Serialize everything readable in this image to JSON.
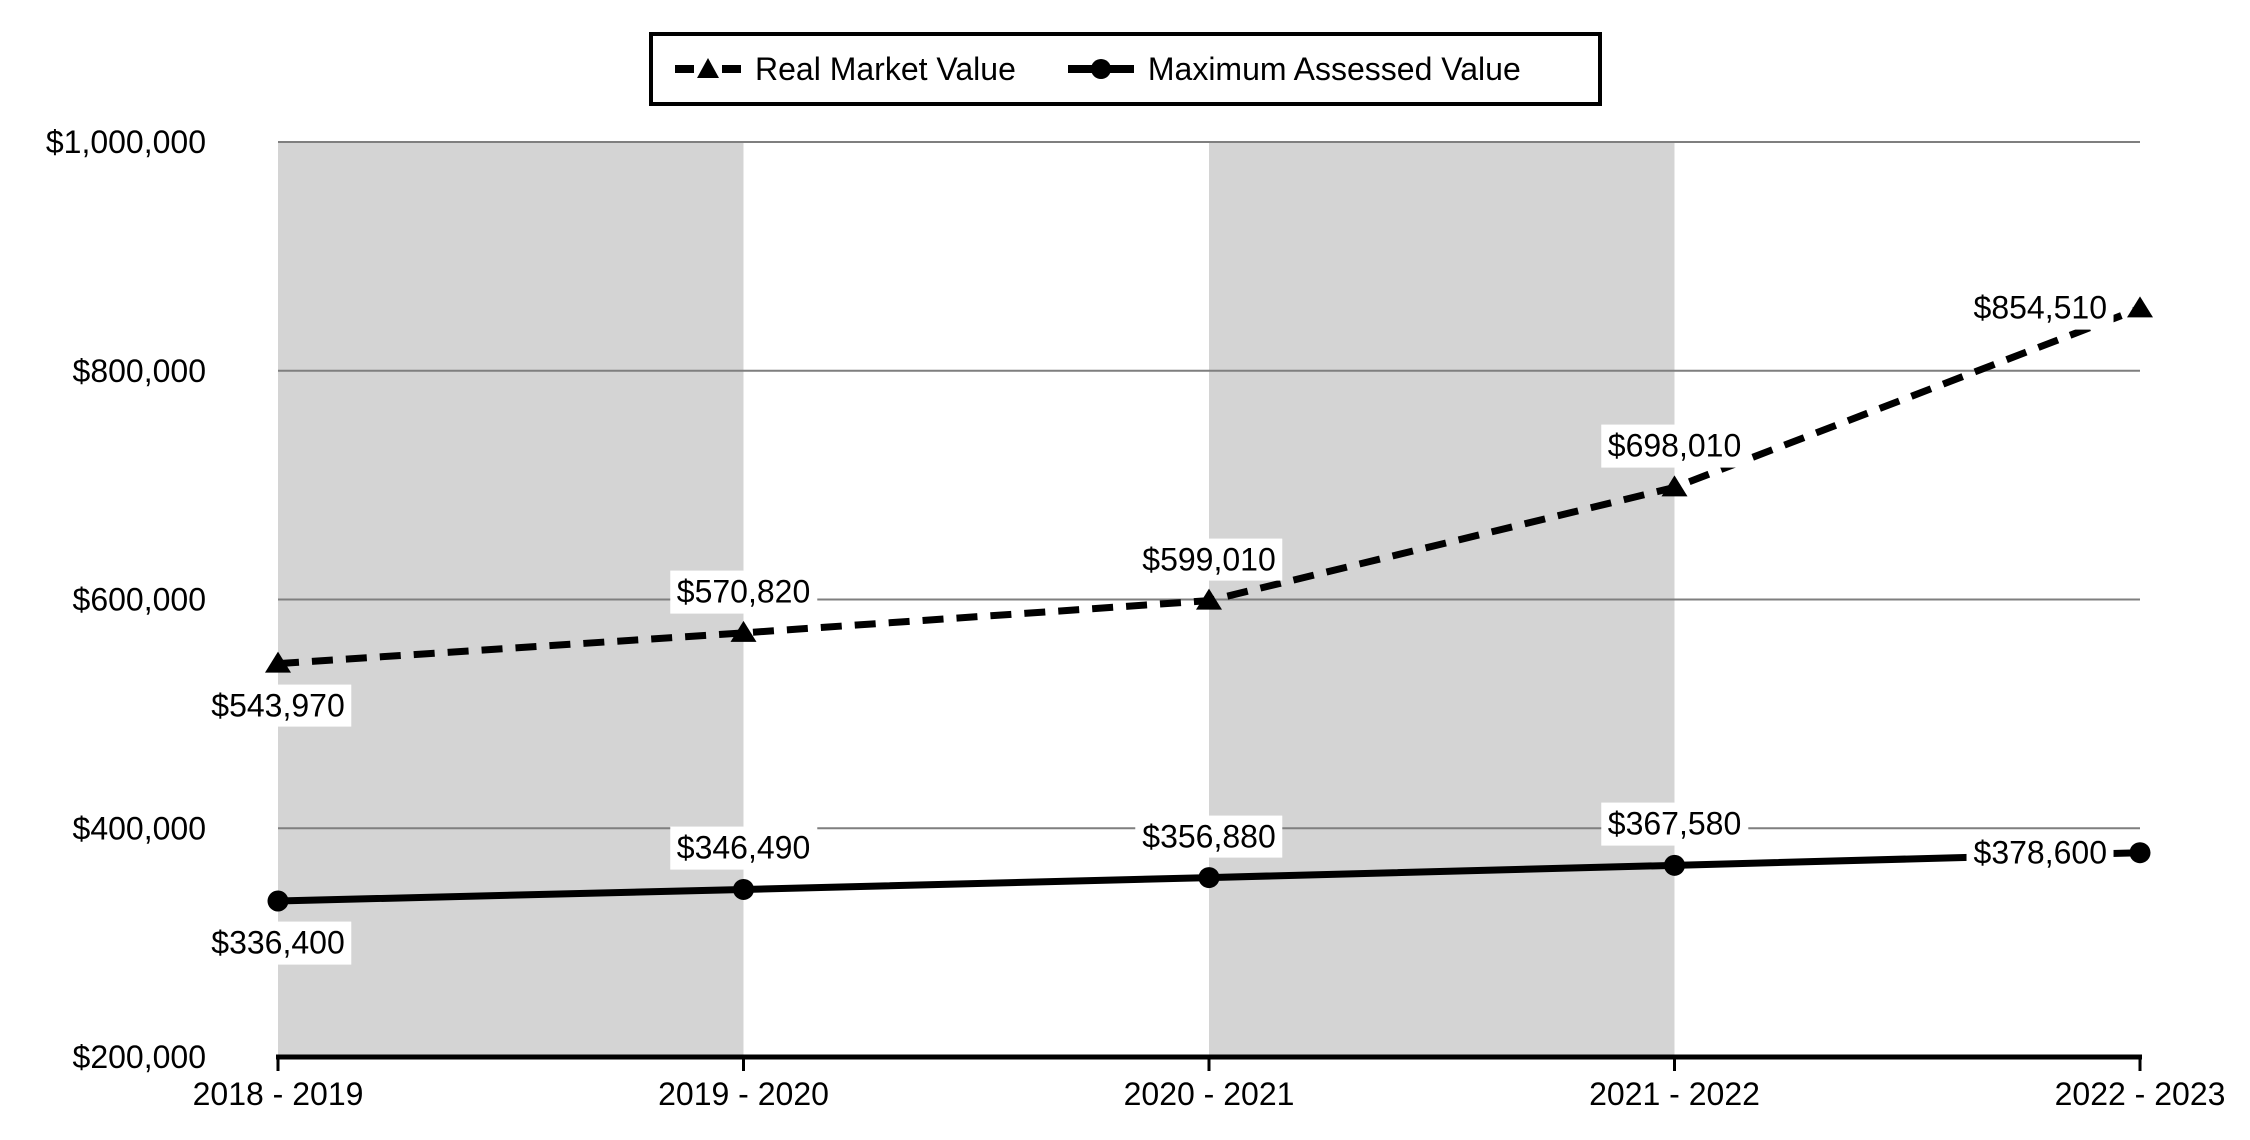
{
  "chart_data": {
    "type": "line",
    "categories": [
      "2018 - 2019",
      "2019 - 2020",
      "2020 - 2021",
      "2021 - 2022",
      "2022 - 2023"
    ],
    "series": [
      {
        "name": "Real Market Value",
        "line_style": "dashed",
        "marker": "triangle",
        "color": "#000000",
        "values": [
          543970,
          570820,
          599010,
          698010,
          854510
        ],
        "labels": [
          "$543,970",
          "$570,820",
          "$599,010",
          "$698,010",
          "$854,510"
        ],
        "label_placement": [
          "below",
          "above",
          "above",
          "above",
          "left"
        ]
      },
      {
        "name": "Maximum Assessed Value",
        "line_style": "solid",
        "marker": "circle",
        "color": "#000000",
        "values": [
          336400,
          346490,
          356880,
          367580,
          378600
        ],
        "labels": [
          "$336,400",
          "$346,490",
          "$356,880",
          "$367,580",
          "$378,600"
        ],
        "label_placement": [
          "below",
          "above",
          "above",
          "above",
          "left"
        ]
      }
    ],
    "ylim": [
      200000,
      1000000
    ],
    "ytick_step": 200000,
    "ytick_labels": [
      "$200,000",
      "$400,000",
      "$600,000",
      "$800,000",
      "$1,000,000"
    ],
    "xlabel": "",
    "ylabel": "",
    "title": "",
    "grid": true,
    "banded_intervals": [
      0,
      2
    ],
    "legend_position": "top"
  },
  "colors": {
    "band": "#d4d4d4",
    "gridline": "#7f7f7f",
    "axis": "#000000",
    "series": "#000000",
    "label_background": "#ffffff",
    "legend_border": "#000000"
  }
}
